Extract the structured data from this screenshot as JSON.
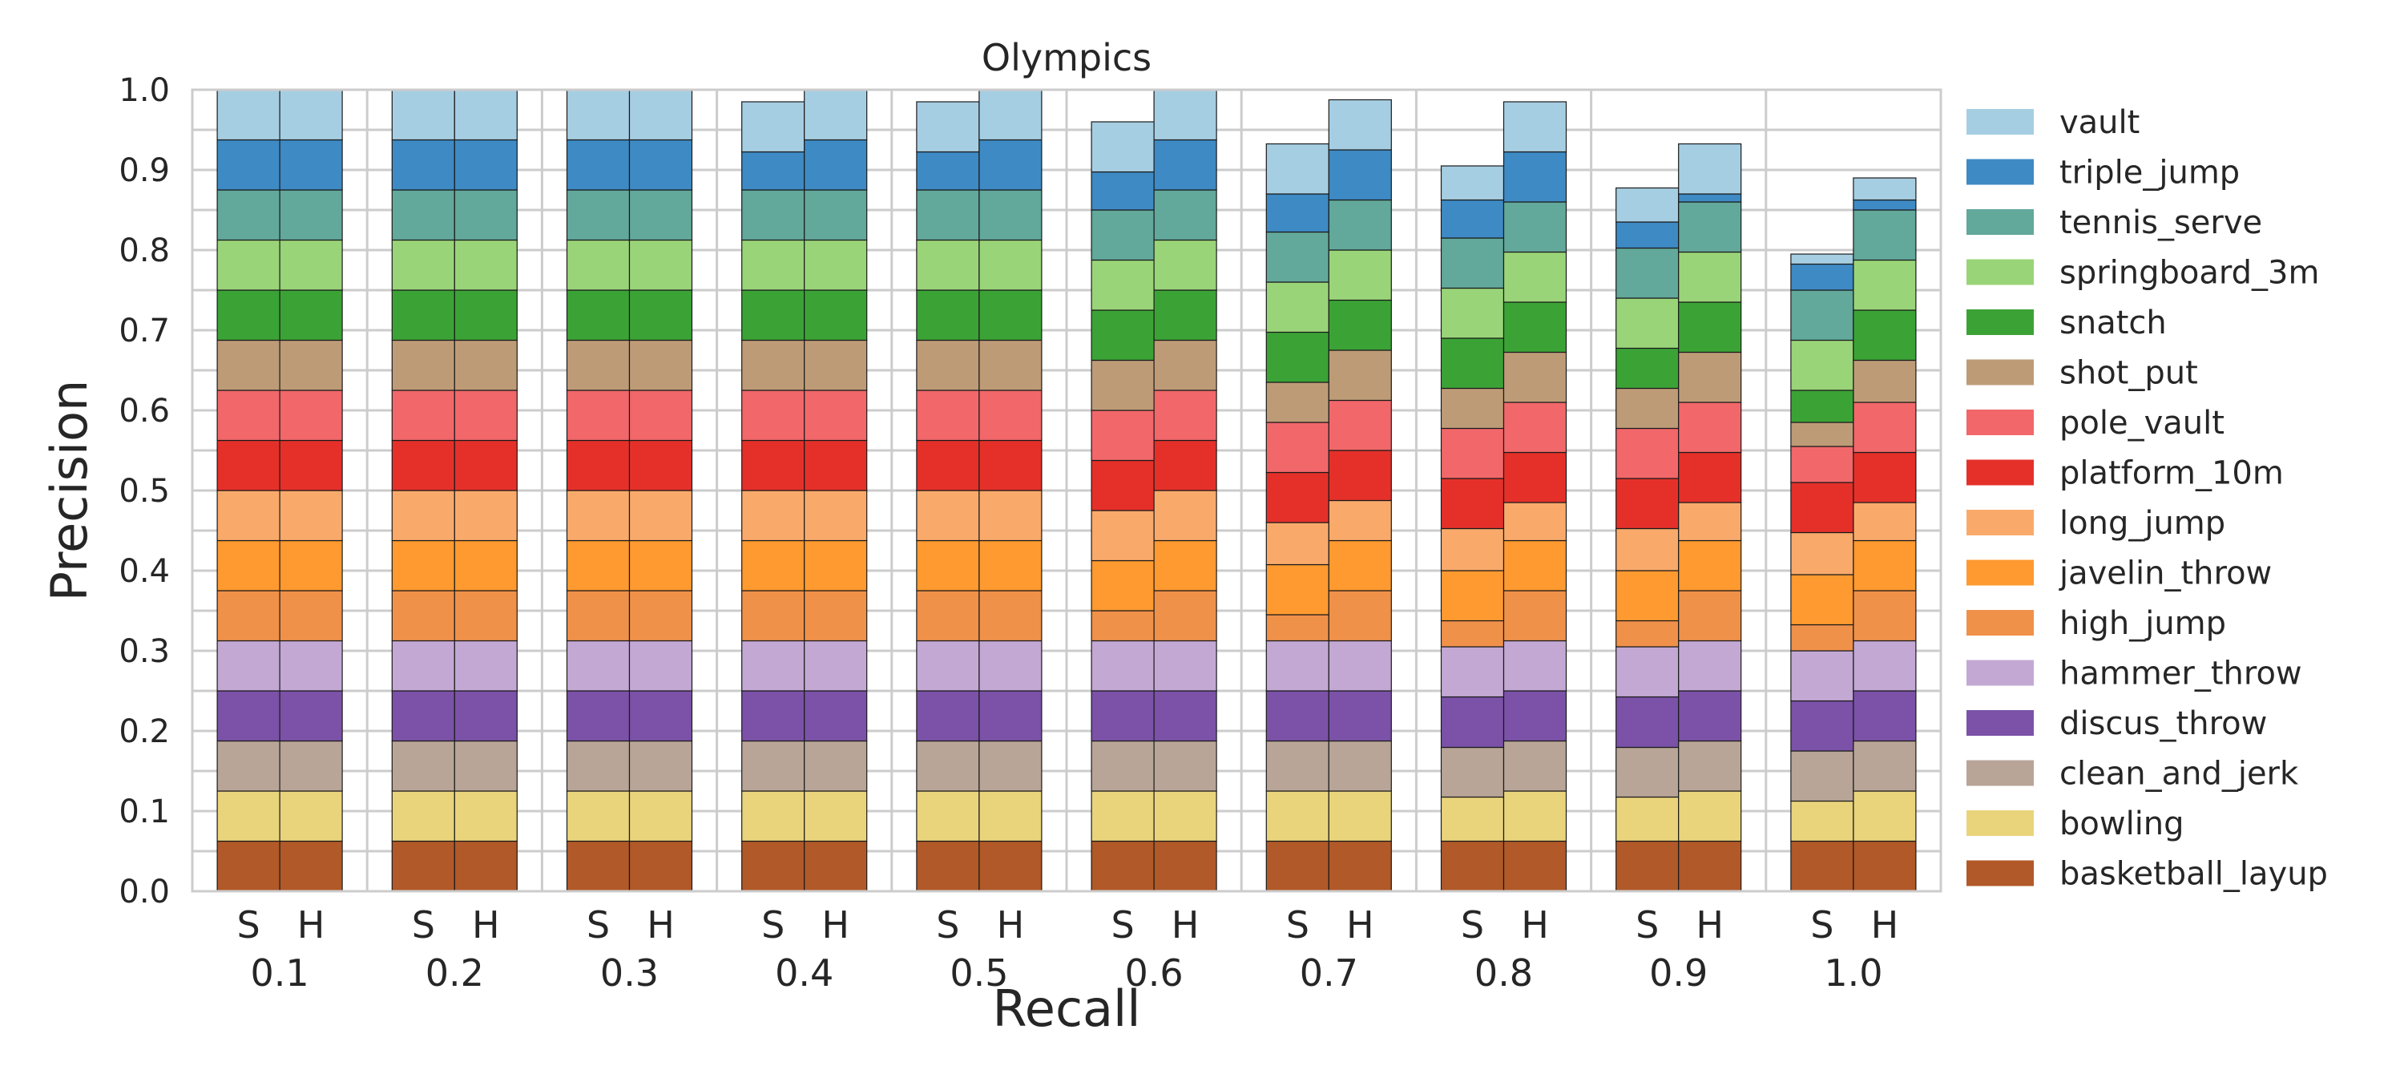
{
  "chart_data": {
    "type": "bar",
    "stacked": true,
    "title": "Olympics",
    "xlabel": "Recall",
    "ylabel": "Precision",
    "ylim": [
      0,
      1.0
    ],
    "yticks": [
      "0.0",
      "0.1",
      "0.2",
      "0.3",
      "0.4",
      "0.5",
      "0.6",
      "0.7",
      "0.8",
      "0.9",
      "1.0"
    ],
    "grid": true,
    "legend_position": "right",
    "bar_labels": [
      "S",
      "H"
    ],
    "categories": [
      "0.1",
      "0.2",
      "0.3",
      "0.4",
      "0.5",
      "0.6",
      "0.7",
      "0.8",
      "0.9",
      "1.0"
    ],
    "series": [
      {
        "name": "basketball_layup",
        "color": "#b15928",
        "S": [
          0.0625,
          0.0625,
          0.0625,
          0.0625,
          0.0625,
          0.0625,
          0.0625,
          0.0625,
          0.0625,
          0.0625
        ],
        "H": [
          0.0625,
          0.0625,
          0.0625,
          0.0625,
          0.0625,
          0.0625,
          0.0625,
          0.0625,
          0.0625,
          0.0625
        ]
      },
      {
        "name": "bowling",
        "color": "#e9d47c",
        "S": [
          0.0625,
          0.0625,
          0.0625,
          0.0625,
          0.0625,
          0.0625,
          0.0625,
          0.055,
          0.055,
          0.05
        ],
        "H": [
          0.0625,
          0.0625,
          0.0625,
          0.0625,
          0.0625,
          0.0625,
          0.0625,
          0.0625,
          0.0625,
          0.0625
        ]
      },
      {
        "name": "clean_and_jerk",
        "color": "#b8a598",
        "S": [
          0.0625,
          0.0625,
          0.0625,
          0.0625,
          0.0625,
          0.0625,
          0.0625,
          0.062,
          0.062,
          0.0625
        ],
        "H": [
          0.0625,
          0.0625,
          0.0625,
          0.0625,
          0.0625,
          0.0625,
          0.0625,
          0.0625,
          0.0625,
          0.0625
        ]
      },
      {
        "name": "discus_throw",
        "color": "#7b52a8",
        "S": [
          0.0625,
          0.0625,
          0.0625,
          0.0625,
          0.0625,
          0.0625,
          0.0625,
          0.063,
          0.063,
          0.0625
        ],
        "H": [
          0.0625,
          0.0625,
          0.0625,
          0.0625,
          0.0625,
          0.0625,
          0.0625,
          0.0625,
          0.0625,
          0.0625
        ]
      },
      {
        "name": "hammer_throw",
        "color": "#c3a8d4",
        "S": [
          0.0625,
          0.0625,
          0.0625,
          0.0625,
          0.0625,
          0.0625,
          0.0625,
          0.0625,
          0.0625,
          0.0625
        ],
        "H": [
          0.0625,
          0.0625,
          0.0625,
          0.0625,
          0.0625,
          0.0625,
          0.0625,
          0.0625,
          0.0625,
          0.0625
        ]
      },
      {
        "name": "high_jump",
        "color": "#f0914a",
        "S": [
          0.0625,
          0.0625,
          0.0625,
          0.0625,
          0.0625,
          0.0375,
          0.0325,
          0.0325,
          0.0325,
          0.0325
        ],
        "H": [
          0.0625,
          0.0625,
          0.0625,
          0.0625,
          0.0625,
          0.0625,
          0.0625,
          0.0625,
          0.0625,
          0.0625
        ]
      },
      {
        "name": "javelin_throw",
        "color": "#fe9a2f",
        "S": [
          0.0625,
          0.0625,
          0.0625,
          0.0625,
          0.0625,
          0.0625,
          0.0625,
          0.0625,
          0.0625,
          0.0625
        ],
        "H": [
          0.0625,
          0.0625,
          0.0625,
          0.0625,
          0.0625,
          0.0625,
          0.0625,
          0.0625,
          0.0625,
          0.0625
        ]
      },
      {
        "name": "long_jump",
        "color": "#f9aa6b",
        "S": [
          0.0625,
          0.0625,
          0.0625,
          0.0625,
          0.0625,
          0.0625,
          0.0525,
          0.0525,
          0.0525,
          0.0525
        ],
        "H": [
          0.0625,
          0.0625,
          0.0625,
          0.0625,
          0.0625,
          0.0625,
          0.05,
          0.0475,
          0.0475,
          0.0475
        ]
      },
      {
        "name": "platform_10m",
        "color": "#e5302a",
        "S": [
          0.0625,
          0.0625,
          0.0625,
          0.0625,
          0.0625,
          0.0625,
          0.0625,
          0.0625,
          0.0625,
          0.0625
        ],
        "H": [
          0.0625,
          0.0625,
          0.0625,
          0.0625,
          0.0625,
          0.0625,
          0.0625,
          0.0625,
          0.0625,
          0.0625
        ]
      },
      {
        "name": "pole_vault",
        "color": "#f2676a",
        "S": [
          0.0625,
          0.0625,
          0.0625,
          0.0625,
          0.0625,
          0.0625,
          0.0625,
          0.0625,
          0.0625,
          0.045
        ],
        "H": [
          0.0625,
          0.0625,
          0.0625,
          0.0625,
          0.0625,
          0.0625,
          0.0625,
          0.0625,
          0.0625,
          0.0625
        ]
      },
      {
        "name": "shot_put",
        "color": "#be9b77",
        "S": [
          0.0625,
          0.0625,
          0.0625,
          0.0625,
          0.0625,
          0.0625,
          0.05,
          0.05,
          0.05,
          0.03
        ],
        "H": [
          0.0625,
          0.0625,
          0.0625,
          0.0625,
          0.0625,
          0.0625,
          0.0625,
          0.0625,
          0.0625,
          0.0525
        ]
      },
      {
        "name": "snatch",
        "color": "#3ba336",
        "S": [
          0.0625,
          0.0625,
          0.0625,
          0.0625,
          0.0625,
          0.0625,
          0.0625,
          0.0625,
          0.05,
          0.04
        ],
        "H": [
          0.0625,
          0.0625,
          0.0625,
          0.0625,
          0.0625,
          0.0625,
          0.0625,
          0.0625,
          0.0625,
          0.0625
        ]
      },
      {
        "name": "springboard_3m",
        "color": "#9ad479",
        "S": [
          0.0625,
          0.0625,
          0.0625,
          0.0625,
          0.0625,
          0.0625,
          0.0625,
          0.0625,
          0.0625,
          0.0625
        ],
        "H": [
          0.0625,
          0.0625,
          0.0625,
          0.0625,
          0.0625,
          0.0625,
          0.0625,
          0.0625,
          0.0625,
          0.0625
        ]
      },
      {
        "name": "tennis_serve",
        "color": "#62a89b",
        "S": [
          0.0625,
          0.0625,
          0.0625,
          0.0625,
          0.0625,
          0.0625,
          0.0625,
          0.0625,
          0.0625,
          0.0625
        ],
        "H": [
          0.0625,
          0.0625,
          0.0625,
          0.0625,
          0.0625,
          0.0625,
          0.0625,
          0.0625,
          0.0625,
          0.0625
        ]
      },
      {
        "name": "triple_jump",
        "color": "#3e8ac4",
        "S": [
          0.0625,
          0.0625,
          0.0625,
          0.0475,
          0.0475,
          0.0475,
          0.0475,
          0.0475,
          0.0325,
          0.0325
        ],
        "H": [
          0.0625,
          0.0625,
          0.0625,
          0.0625,
          0.0625,
          0.0625,
          0.0625,
          0.0625,
          0.01,
          0.0125
        ]
      },
      {
        "name": "vault",
        "color": "#a6cee3",
        "S": [
          0.0625,
          0.0625,
          0.0625,
          0.0625,
          0.0625,
          0.0625,
          0.0625,
          0.0425,
          0.0425,
          0.0125
        ],
        "H": [
          0.0625,
          0.0625,
          0.0625,
          0.0625,
          0.0625,
          0.0625,
          0.0625,
          0.0625,
          0.0625,
          0.0275
        ]
      }
    ]
  }
}
